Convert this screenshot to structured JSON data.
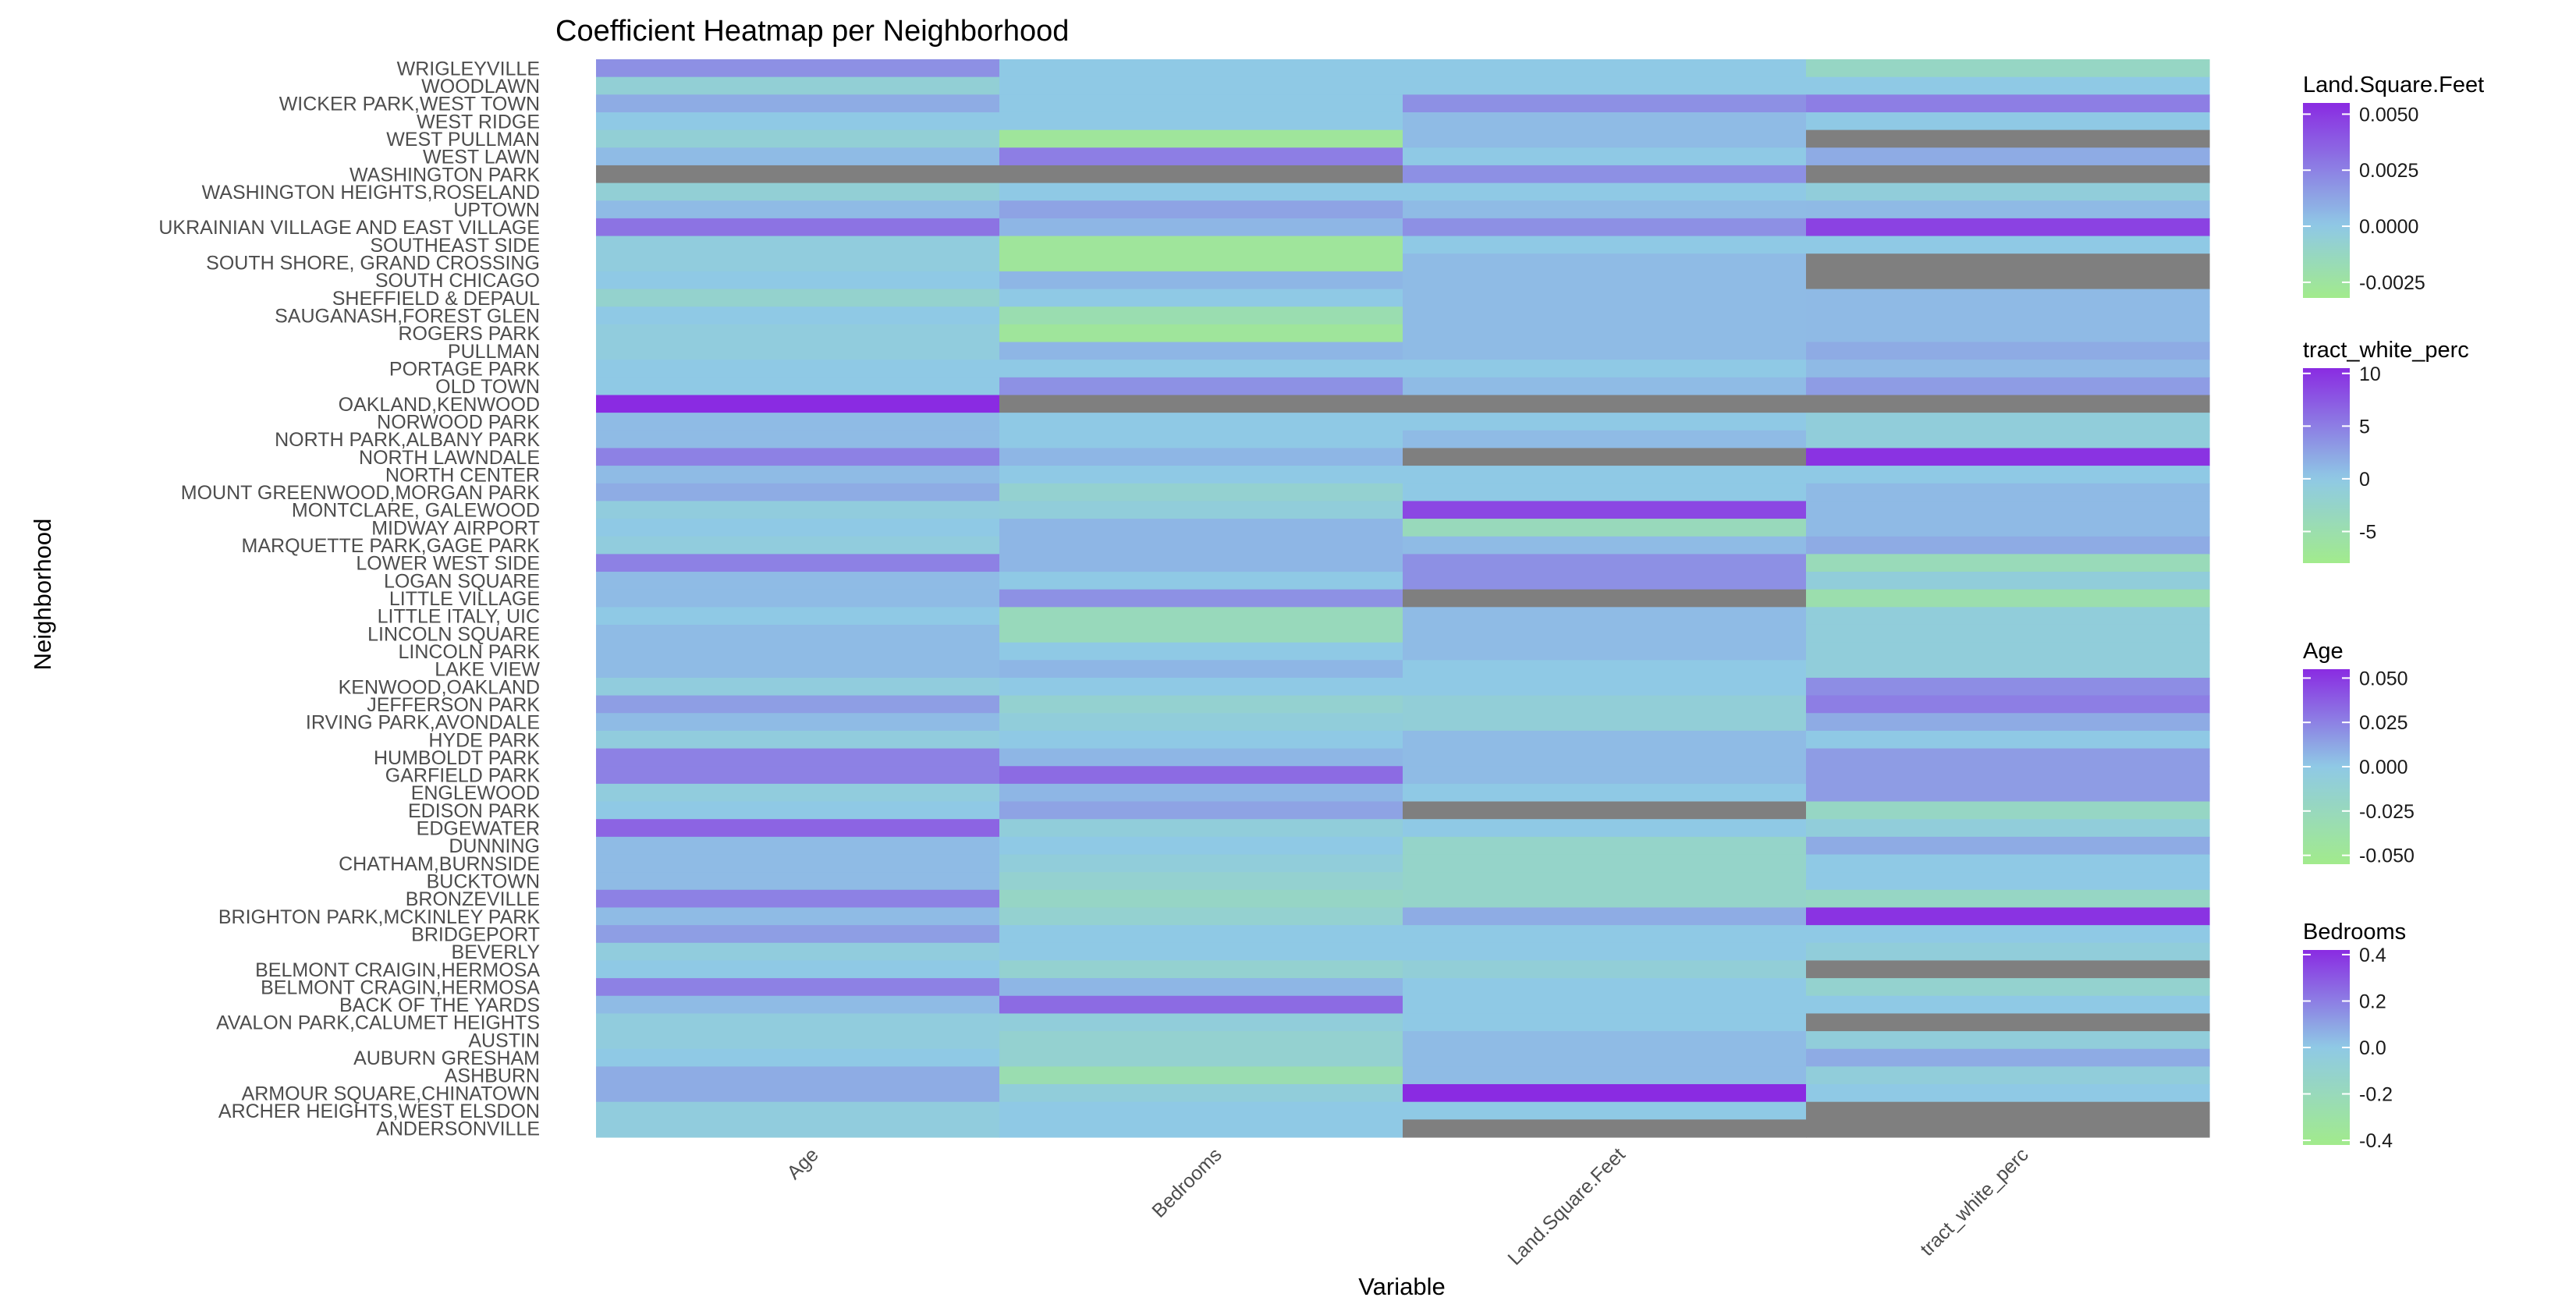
{
  "chart_data": {
    "type": "heatmap",
    "title": "Coefficient Heatmap per Neighborhood",
    "xlabel": "Variable",
    "ylabel": "Neighborhood",
    "grid": true,
    "legend_position": "right",
    "na_color": "#7f7f7f",
    "colors": {
      "low": "#a2eb8c",
      "mid": "#8fc9e5",
      "high": "#8a2be2"
    },
    "columns": [
      "Age",
      "Bedrooms",
      "Land.Square.Feet",
      "tract_white_perc"
    ],
    "rows": [
      "WRIGLEYVILLE",
      "WOODLAWN",
      "WICKER PARK,WEST TOWN",
      "WEST RIDGE",
      "WEST PULLMAN",
      "WEST LAWN",
      "WASHINGTON PARK",
      "WASHINGTON HEIGHTS,ROSELAND",
      "UPTOWN",
      "UKRAINIAN VILLAGE AND EAST VILLAGE",
      "SOUTHEAST SIDE",
      "SOUTH SHORE, GRAND CROSSING",
      "SOUTH CHICAGO",
      "SHEFFIELD & DEPAUL",
      "SAUGANASH,FOREST GLEN",
      "ROGERS PARK",
      "PULLMAN",
      "PORTAGE PARK",
      "OLD TOWN",
      "OAKLAND,KENWOOD",
      "NORWOOD PARK",
      "NORTH PARK,ALBANY PARK",
      "NORTH LAWNDALE",
      "NORTH CENTER",
      "MOUNT GREENWOOD,MORGAN PARK",
      "MONTCLARE, GALEWOOD",
      "MIDWAY AIRPORT",
      "MARQUETTE PARK,GAGE PARK",
      "LOWER WEST SIDE",
      "LOGAN SQUARE",
      "LITTLE VILLAGE",
      "LITTLE ITALY, UIC",
      "LINCOLN SQUARE",
      "LINCOLN PARK",
      "LAKE VIEW",
      "KENWOOD,OAKLAND",
      "JEFFERSON PARK",
      "IRVING PARK,AVONDALE",
      "HYDE PARK",
      "HUMBOLDT PARK",
      "GARFIELD PARK",
      "ENGLEWOOD",
      "EDISON PARK",
      "EDGEWATER",
      "DUNNING",
      "CHATHAM,BURNSIDE",
      "BUCKTOWN",
      "BRONZEVILLE",
      "BRIGHTON PARK,MCKINLEY PARK",
      "BRIDGEPORT",
      "BEVERLY",
      "BELMONT CRAIGIN,HERMOSA",
      "BELMONT CRAGIN,HERMOSA",
      "BACK OF THE YARDS",
      "AVALON PARK,CALUMET HEIGHTS",
      "AUSTIN",
      "AUBURN GRESHAM",
      "ASHBURN",
      "ARMOUR SQUARE,CHINATOWN",
      "ARCHER HEIGHTS,WEST ELSDON",
      "ANDERSONVILLE"
    ],
    "values": {
      "Age": [
        0.02,
        -0.01,
        0.01,
        0.0,
        -0.01,
        0.005,
        null,
        -0.01,
        0.005,
        0.03,
        -0.005,
        -0.005,
        0.0,
        -0.015,
        0.0,
        -0.005,
        -0.005,
        0.0,
        0.0,
        0.065,
        0.005,
        0.005,
        0.025,
        0.005,
        0.01,
        -0.005,
        0.0,
        -0.005,
        0.025,
        0.005,
        0.005,
        0.0,
        0.005,
        0.005,
        0.005,
        -0.005,
        0.015,
        0.005,
        -0.005,
        0.025,
        0.025,
        -0.005,
        0.0,
        0.035,
        0.005,
        0.005,
        0.005,
        0.025,
        0.005,
        0.015,
        -0.005,
        0.0,
        0.025,
        0.005,
        -0.005,
        -0.005,
        0.0,
        0.01,
        0.01,
        -0.005,
        -0.005
      ],
      "Bedrooms": [
        0.0,
        0.0,
        0.0,
        0.0,
        -0.35,
        0.2,
        null,
        0.0,
        0.1,
        0.05,
        -0.35,
        -0.35,
        0.05,
        0.0,
        -0.25,
        -0.35,
        0.05,
        0.0,
        0.15,
        null,
        0.0,
        0.0,
        0.05,
        0.0,
        -0.1,
        -0.05,
        0.05,
        0.05,
        0.05,
        0.0,
        0.15,
        -0.2,
        -0.2,
        0.0,
        0.05,
        0.0,
        -0.1,
        -0.05,
        0.0,
        0.05,
        0.25,
        0.05,
        0.1,
        -0.05,
        0.0,
        -0.05,
        -0.1,
        -0.15,
        -0.1,
        0.0,
        0.0,
        -0.1,
        0.05,
        0.25,
        -0.05,
        -0.1,
        -0.1,
        -0.25,
        -0.05,
        0.0,
        0.0
      ],
      "Land.Square.Feet": [
        0.0,
        0.0,
        0.002,
        0.0005,
        0.0005,
        0.0,
        0.002,
        0.0,
        0.0005,
        0.002,
        0.0,
        0.0005,
        0.0005,
        0.0005,
        0.0005,
        0.0005,
        0.0005,
        0.0,
        0.0005,
        null,
        0.0,
        0.0005,
        null,
        0.0,
        0.0,
        0.0045,
        -0.0015,
        0.0005,
        0.002,
        0.002,
        null,
        0.0005,
        0.0005,
        0.0005,
        0.0,
        0.0,
        -0.0005,
        -0.0005,
        0.0005,
        0.0005,
        0.0005,
        0.0,
        null,
        0.0,
        -0.001,
        -0.001,
        -0.001,
        -0.001,
        0.001,
        0.0,
        0.0,
        -0.0005,
        0.0,
        0.0,
        0.0,
        0.0005,
        0.0005,
        0.0005,
        0.0055,
        0.0,
        null
      ],
      "tract_white_perc": [
        -3.0,
        0.0,
        5.0,
        0.0,
        null,
        2.0,
        null,
        -1.0,
        1.0,
        9.0,
        0.0,
        null,
        null,
        1.0,
        1.0,
        1.0,
        2.0,
        1.0,
        3.0,
        null,
        -1.0,
        -1.0,
        10.0,
        0.0,
        1.0,
        1.0,
        1.0,
        2.0,
        -4.0,
        -1.0,
        -5.0,
        -1.0,
        -1.0,
        -1.0,
        -1.0,
        4.0,
        5.0,
        2.0,
        0.0,
        3.0,
        3.0,
        3.0,
        -3.0,
        -1.0,
        2.0,
        0.0,
        0.0,
        -3.0,
        10.0,
        0.0,
        -1.0,
        null,
        -2.0,
        0.0,
        null,
        -1.0,
        2.0,
        -1.0,
        0.0,
        null,
        null
      ]
    },
    "legends": [
      {
        "name": "Land.Square.Feet",
        "min": -0.0032,
        "max": 0.0055,
        "ticks": [
          0.005,
          0.0025,
          0.0,
          -0.0025
        ],
        "tick_labels": [
          "0.0050",
          "0.0025",
          "0.0000",
          "-0.0025"
        ]
      },
      {
        "name": "tract_white_perc",
        "min": -8.0,
        "max": 10.5,
        "ticks": [
          10,
          5,
          0,
          -5
        ],
        "tick_labels": [
          "10",
          "5",
          "0",
          "-5"
        ]
      },
      {
        "name": "Age",
        "min": -0.055,
        "max": 0.055,
        "ticks": [
          0.05,
          0.025,
          0.0,
          -0.025,
          -0.05
        ],
        "tick_labels": [
          "0.050",
          "0.025",
          "0.000",
          "-0.025",
          "-0.050"
        ]
      },
      {
        "name": "Bedrooms",
        "min": -0.42,
        "max": 0.42,
        "ticks": [
          0.4,
          0.2,
          0.0,
          -0.2,
          -0.4
        ],
        "tick_labels": [
          "0.4",
          "0.2",
          "0.0",
          "-0.2",
          "-0.4"
        ]
      }
    ]
  }
}
